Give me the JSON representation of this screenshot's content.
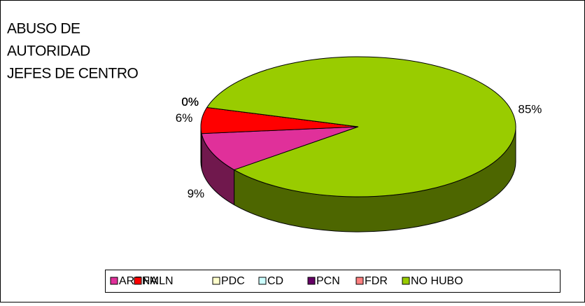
{
  "chart_data": {
    "type": "pie",
    "title": [
      "ABUSO DE",
      "AUTORIDAD",
      "JEFES DE CENTRO"
    ],
    "categories": [
      "ARENA",
      "FMLN",
      "PDC",
      "CD",
      "PCN",
      "FDR",
      "NO HUBO"
    ],
    "values": [
      9,
      6,
      0,
      0,
      0,
      0,
      85
    ],
    "value_labels": [
      "9%",
      "6%",
      "0%",
      "0%",
      "0%",
      "0%",
      "85%"
    ],
    "colors": [
      "#e0309a",
      "#ff0000",
      "#ffffcc",
      "#ccffff",
      "#660066",
      "#ff8080",
      "#99cc00"
    ],
    "legend": "bottom"
  }
}
